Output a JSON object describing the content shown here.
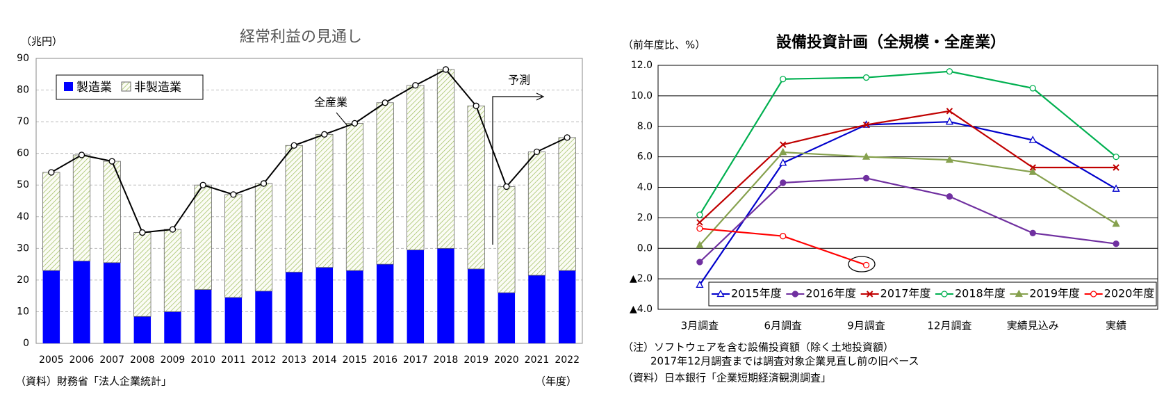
{
  "chart_data": [
    {
      "type": "bar",
      "title": "経常利益の見通し",
      "y_label": "（兆円）",
      "x_label": "（年度）",
      "source": "（資料）財務省「法人企業統計」",
      "annotation": "予測",
      "categories": [
        "2005",
        "2006",
        "2007",
        "2008",
        "2009",
        "2010",
        "2011",
        "2012",
        "2013",
        "2014",
        "2015",
        "2016",
        "2017",
        "2018",
        "2019",
        "2020",
        "2021",
        "2022"
      ],
      "series": [
        {
          "name": "製造業",
          "color": "#0000ff",
          "values": [
            23,
            26,
            25.5,
            8.5,
            10,
            17,
            14.5,
            16.5,
            22.5,
            24,
            23,
            25,
            29.5,
            30,
            23.5,
            16,
            21.5,
            23
          ]
        },
        {
          "name": "非製造業",
          "color": "#9bbb59",
          "pattern": "hatch",
          "values": [
            31,
            33.5,
            32,
            26.5,
            26,
            33,
            32.5,
            34,
            40,
            42,
            46.5,
            51,
            52,
            56.5,
            51.5,
            33.5,
            39,
            42
          ]
        },
        {
          "name": "全産業",
          "color": "#000000",
          "type": "line",
          "values": [
            54,
            59.5,
            57.5,
            35,
            36,
            50,
            47,
            50.5,
            62.5,
            66,
            69.5,
            76,
            81.5,
            86.5,
            75,
            49.5,
            60.5,
            65
          ]
        }
      ],
      "ylim": [
        0,
        90
      ],
      "yticks": [
        0,
        10,
        20,
        30,
        40,
        50,
        60,
        70,
        80,
        90
      ],
      "grid": true,
      "legend": "upper left"
    },
    {
      "type": "line",
      "title": "設備投資計画（全規模・全産業）",
      "y_label": "（前年度比、%）",
      "notes": [
        "（注）ソフトウェアを含む設備投資額（除く土地投資額）",
        "2017年12月調査までは調査対象企業見直し前の旧ベース"
      ],
      "source": "（資料）日本銀行「企業短期経済観測調査」",
      "categories": [
        "3月調査",
        "6月調査",
        "9月調査",
        "12月調査",
        "実績見込み",
        "実績"
      ],
      "series": [
        {
          "name": "2015年度",
          "color": "#0000cc",
          "marker": "triangle-open",
          "values": [
            -2.4,
            5.6,
            8.1,
            8.3,
            7.1,
            3.9
          ]
        },
        {
          "name": "2016年度",
          "color": "#7030a0",
          "marker": "circle-filled",
          "values": [
            -0.9,
            4.3,
            4.6,
            3.4,
            1.0,
            0.3
          ]
        },
        {
          "name": "2017年度",
          "color": "#c00000",
          "marker": "x",
          "values": [
            1.7,
            6.8,
            8.1,
            9.0,
            5.3,
            5.3
          ]
        },
        {
          "name": "2018年度",
          "color": "#00b050",
          "marker": "circle-open",
          "values": [
            2.2,
            11.1,
            11.2,
            11.6,
            10.5,
            6.0
          ]
        },
        {
          "name": "2019年度",
          "color": "#86a14e",
          "marker": "triangle-filled",
          "values": [
            0.2,
            6.3,
            6.0,
            5.8,
            5.0,
            1.6
          ]
        },
        {
          "name": "2020年度",
          "color": "#ff0000",
          "marker": "circle-open",
          "values": [
            1.3,
            0.8,
            -1.1,
            null,
            null,
            null
          ]
        }
      ],
      "ylim": [
        -4,
        12
      ],
      "yticks": [
        {
          "value": 12,
          "label": "12.0"
        },
        {
          "value": 10,
          "label": "10.0"
        },
        {
          "value": 8,
          "label": "8.0"
        },
        {
          "value": 6,
          "label": "6.0"
        },
        {
          "value": 4,
          "label": "4.0"
        },
        {
          "value": 2,
          "label": "2.0"
        },
        {
          "value": 0,
          "label": "0.0"
        },
        {
          "value": -2,
          "label": "▲2.0"
        },
        {
          "value": -4,
          "label": "▲4.0"
        }
      ],
      "grid": true,
      "legend": "lower center"
    }
  ]
}
